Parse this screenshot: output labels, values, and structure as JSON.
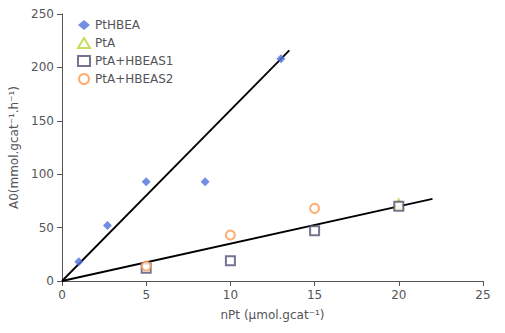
{
  "chart_data": {
    "type": "scatter",
    "xlabel": "nPt (μmol.gcat⁻¹)",
    "ylabel": "A0(mmol.gcat⁻¹.h⁻¹)",
    "series": [
      {
        "name": "PtHBEA",
        "x": [
          1.0,
          2.7,
          5.0,
          8.5,
          13.0
        ],
        "values": [
          18,
          52,
          93,
          93,
          208
        ],
        "marker": "diamond"
      },
      {
        "name": "PtA",
        "x": [
          20.0
        ],
        "values": [
          72
        ],
        "marker": "triangle-open"
      },
      {
        "name": "PtA+HBEAS1",
        "x": [
          5.0,
          10.0,
          15.0,
          20.0
        ],
        "values": [
          12,
          19,
          47,
          70
        ],
        "marker": "square-open"
      },
      {
        "name": "PtA+HBEAS2",
        "x": [
          5.0,
          10.0,
          15.0
        ],
        "values": [
          14,
          43,
          68
        ],
        "marker": "circle-open"
      },
      {
        "type": "line",
        "x": [
          0,
          13.5
        ],
        "values": [
          0,
          216
        ],
        "color": "#000000",
        "line_style": "solid"
      },
      {
        "type": "line",
        "x": [
          0,
          22
        ],
        "values": [
          0,
          77
        ],
        "color": "#000000",
        "line_style": "solid"
      }
    ],
    "xlim": [
      0,
      25
    ],
    "xticks": [
      0,
      5,
      10,
      15,
      20,
      25
    ],
    "ylim": [
      0,
      250
    ],
    "yticks": [
      0,
      50,
      100,
      150,
      200,
      250
    ],
    "grid": false,
    "legend": "upper left"
  }
}
